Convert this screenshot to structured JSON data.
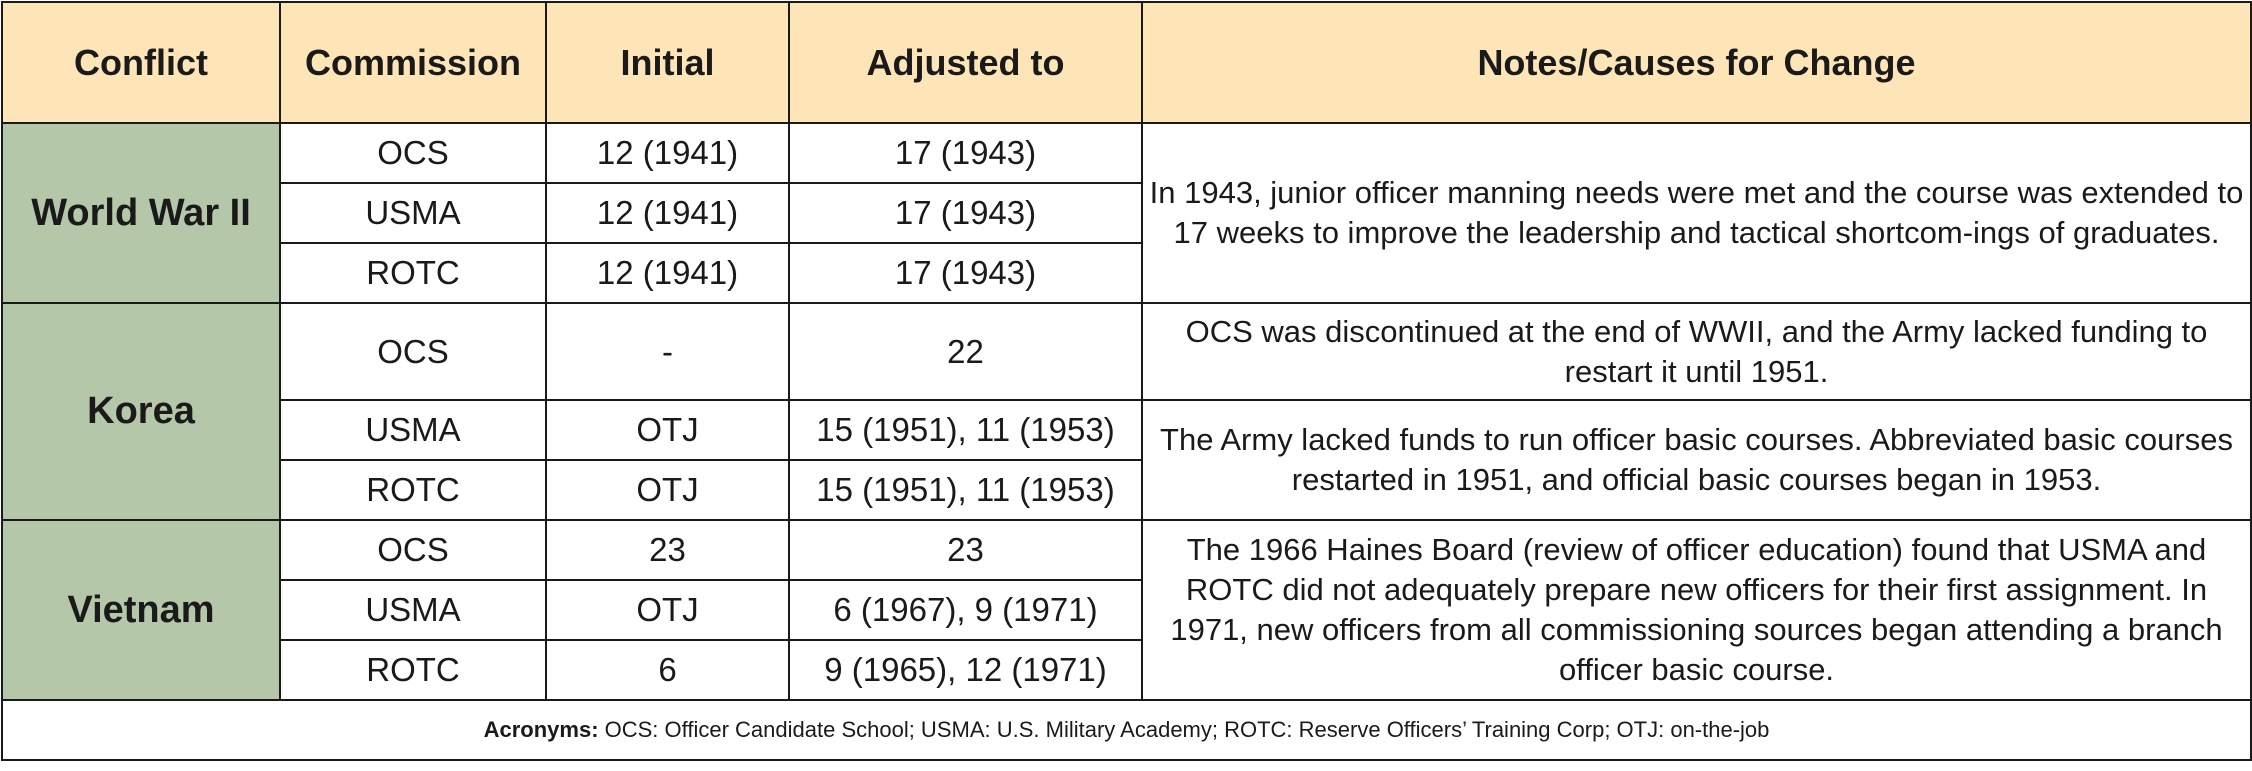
{
  "headers": [
    "Conflict",
    "Commission",
    "Initial",
    "Adjusted to",
    "Notes/Causes for Change"
  ],
  "groups": [
    {
      "conflict": "World War II",
      "rows": [
        {
          "commission": "OCS",
          "initial": "12 (1941)",
          "adjusted": "17 (1943)"
        },
        {
          "commission": "USMA",
          "initial": "12 (1941)",
          "adjusted": "17 (1943)"
        },
        {
          "commission": "ROTC",
          "initial": "12 (1941)",
          "adjusted": "17 (1943)"
        }
      ],
      "notes": [
        "In 1943, junior officer manning needs were met and the course was extended to 17 weeks to improve the leadership and tactical shortcom-ings of graduates."
      ]
    },
    {
      "conflict": "Korea",
      "rows": [
        {
          "commission": "OCS",
          "initial": "-",
          "adjusted": "22"
        },
        {
          "commission": "USMA",
          "initial": "OTJ",
          "adjusted": "15 (1951), 11 (1953)"
        },
        {
          "commission": "ROTC",
          "initial": "OTJ",
          "adjusted": "15 (1951), 11 (1953)"
        }
      ],
      "notes": [
        "OCS was discontinued at the end of WWII, and the Army lacked funding to restart it until 1951.",
        "The Army lacked funds to run officer basic courses. Abbreviated basic courses restarted in 1951, and official basic courses began in 1953."
      ]
    },
    {
      "conflict": "Vietnam",
      "rows": [
        {
          "commission": "OCS",
          "initial": "23",
          "adjusted": "23"
        },
        {
          "commission": "USMA",
          "initial": "OTJ",
          "adjusted": "6 (1967), 9 (1971)"
        },
        {
          "commission": "ROTC",
          "initial": "6",
          "adjusted": "9 (1965), 12 (1971)"
        }
      ],
      "notes": [
        "The 1966 Haines Board (review of officer education) found that USMA and ROTC did not adequately prepare new officers for their first assignment. In 1971, new officers from all commissioning sources began attending a branch officer basic course."
      ]
    }
  ],
  "footer": {
    "label": "Acronyms:",
    "text": " OCS: Officer Candidate School; USMA: U.S. Military Academy; ROTC: Reserve Officers’ Training Corp; OTJ: on-the-job"
  },
  "colors": {
    "header_bg": "#fde5b8",
    "conflict_bg": "#b4c7a9",
    "border": "#1a1a1a"
  }
}
